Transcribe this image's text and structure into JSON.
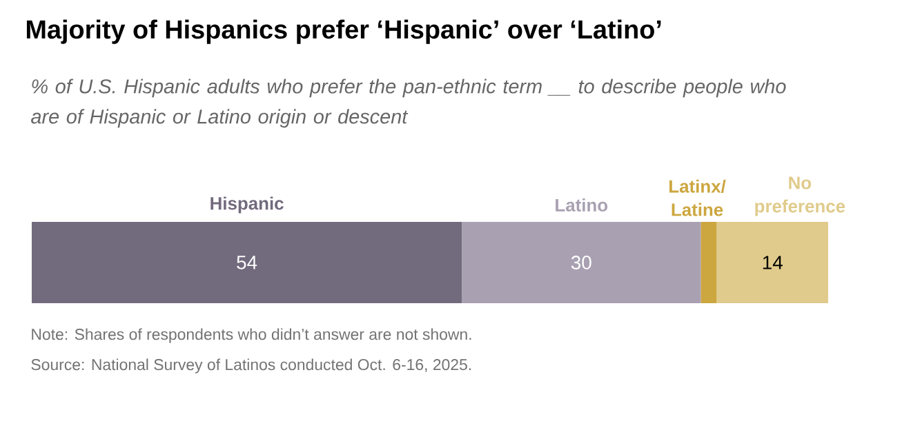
{
  "chart_data": {
    "type": "bar",
    "orientation": "horizontal",
    "stacked": true,
    "title": "Majority of Hispanics prefer ‘Hispanic’ over ‘Latino’",
    "subtitle": "% of U.S. Hispanic adults who prefer the pan-ethnic term __ to describe people who are of Hispanic or Latino origin or descent",
    "categories": [
      null
    ],
    "series": [
      {
        "name": "Hispanic",
        "color": "#726a7d",
        "values": [
          54
        ],
        "value_labels": [
          "54"
        ]
      },
      {
        "name": "Latino",
        "color": "#a9a1b2",
        "values": [
          30
        ],
        "value_labels": [
          "30"
        ]
      },
      {
        "name": "Latinx/ Latine",
        "color": "#cca63f",
        "values": [
          2
        ],
        "value_labels": [
          null
        ]
      },
      {
        "name": "No preference",
        "color": "#e0cb8c",
        "values": [
          14
        ],
        "value_labels": [
          "14"
        ]
      }
    ],
    "annotations": [
      "Note: Shares of respondents who didn’t answer are not shown.",
      "Source: National Survey of Latinos conducted Oct. 6-16, 2025."
    ]
  }
}
